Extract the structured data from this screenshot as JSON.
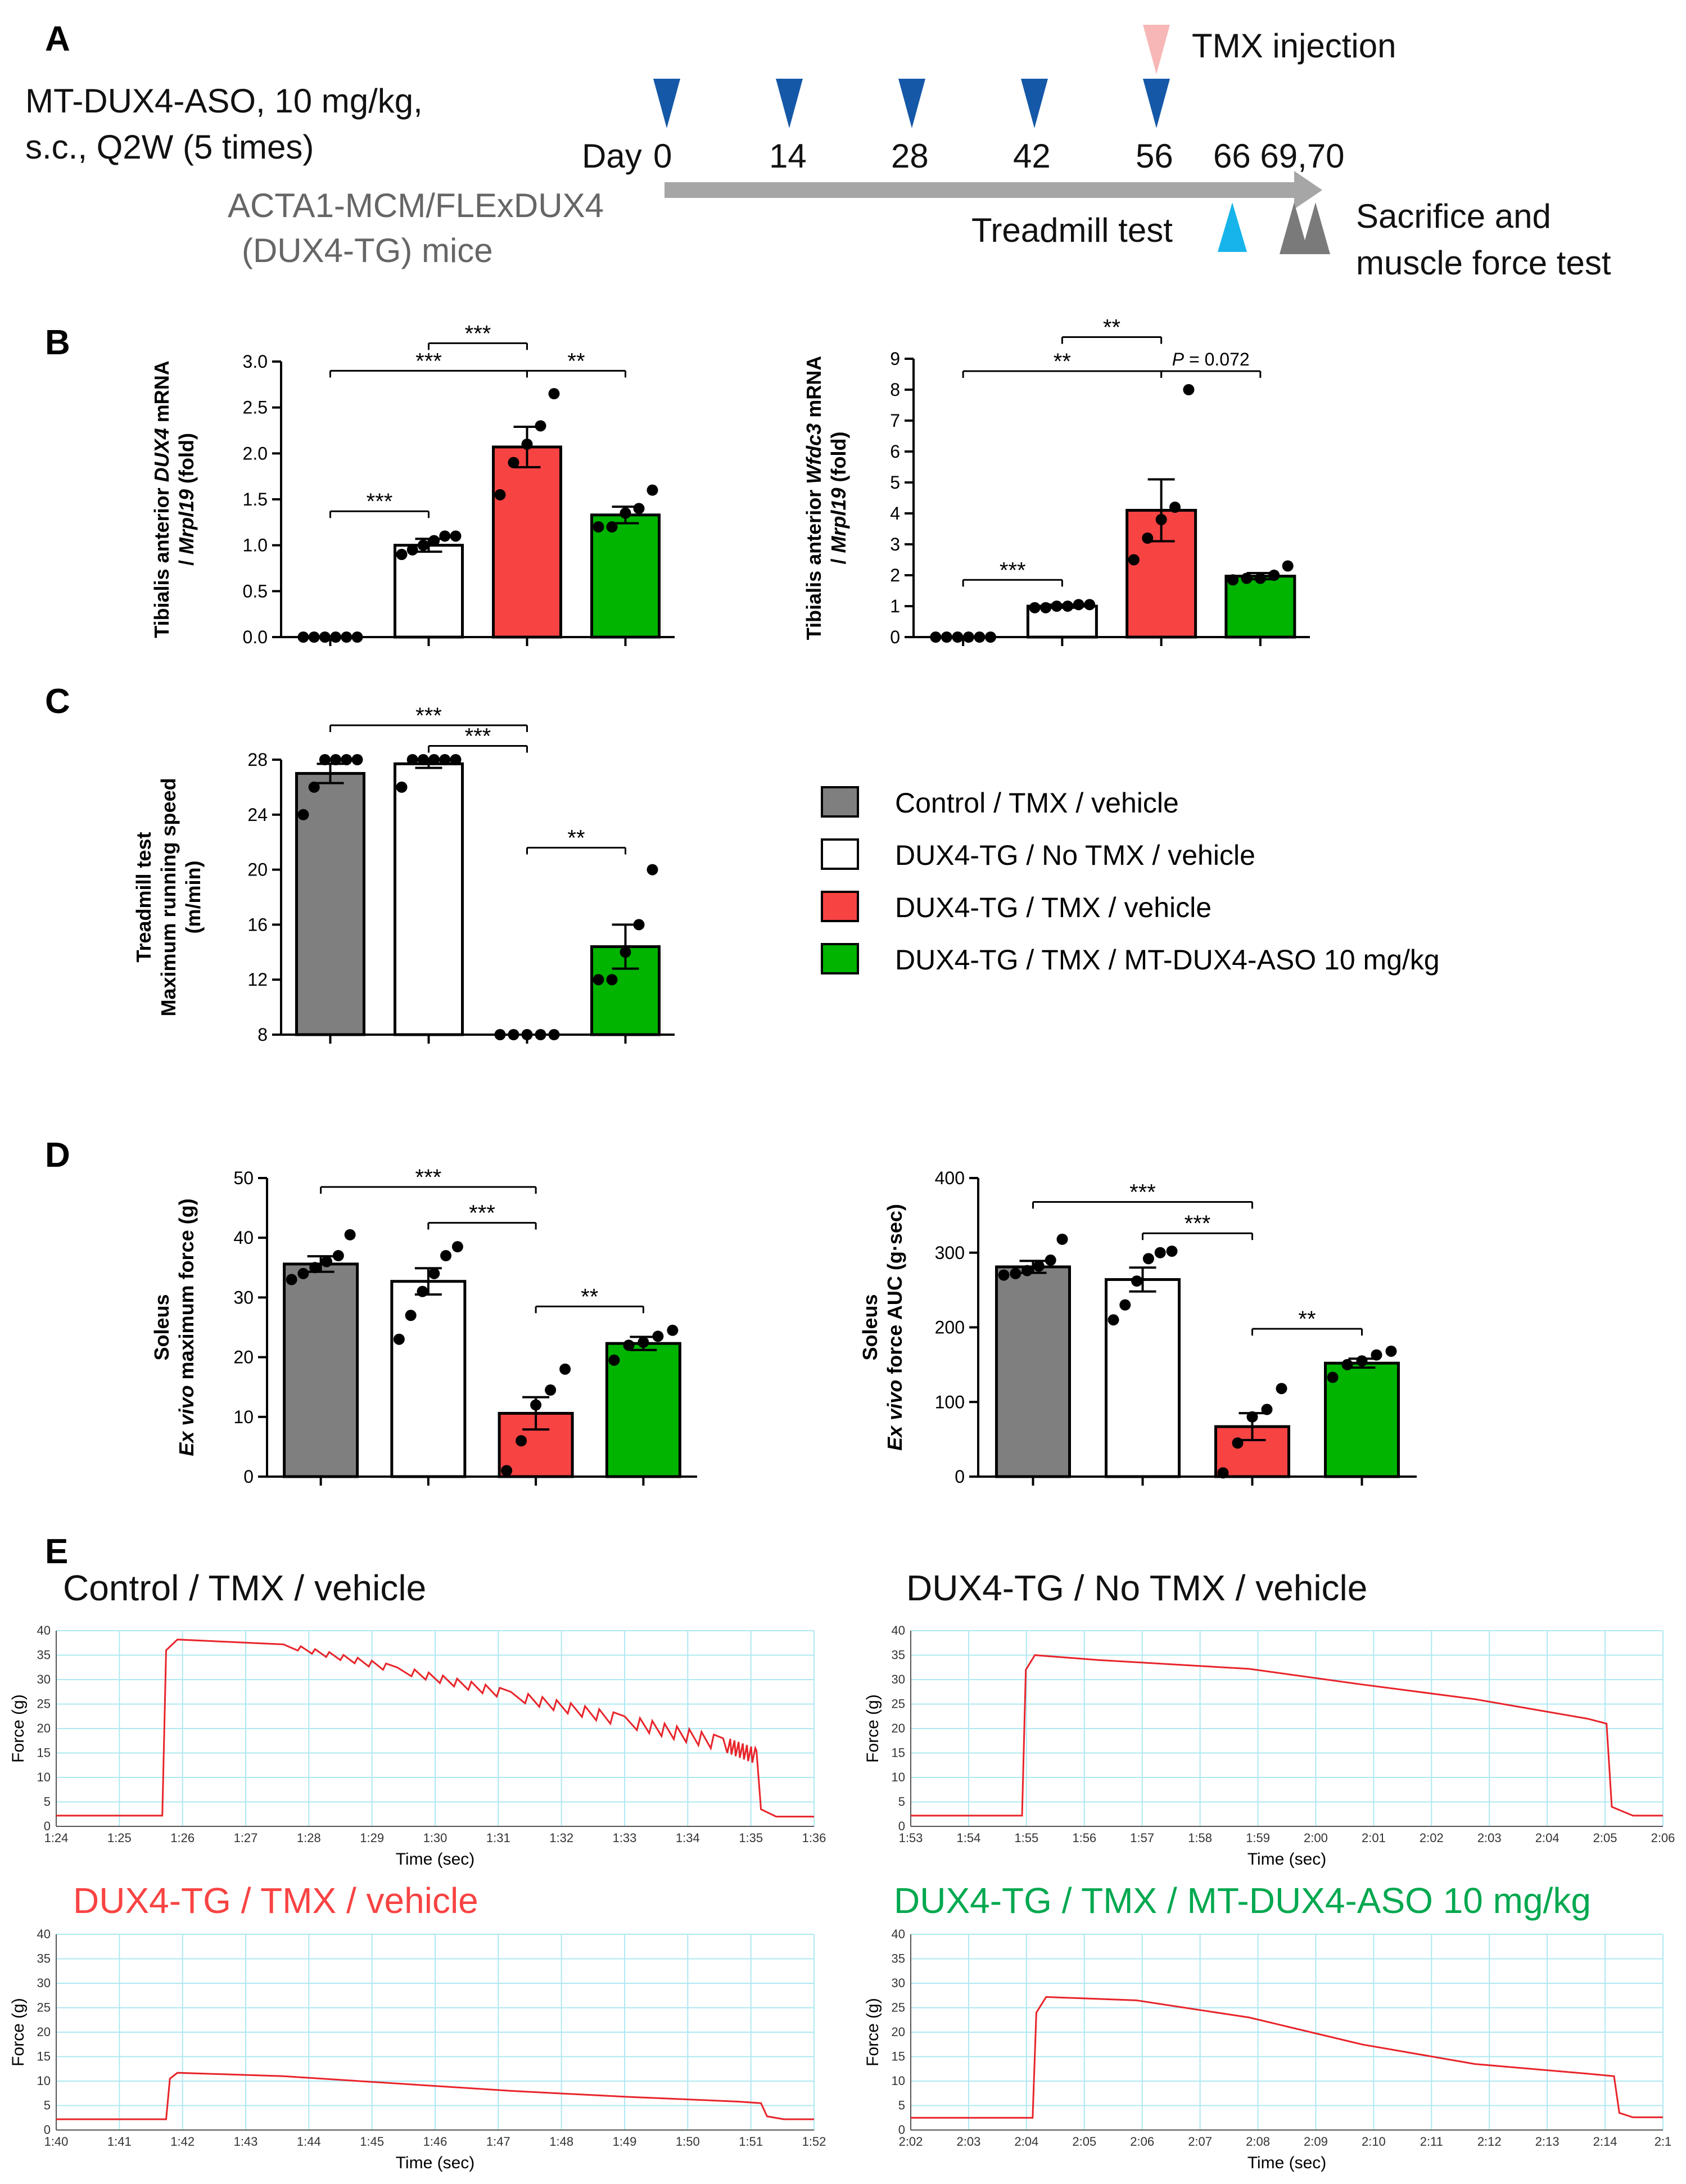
{
  "colors": {
    "control": "#7f7f7f",
    "notmx": "#ffffff",
    "tmx": "#f84343",
    "aso": "#00b400",
    "arrow_blue": "#1558a8",
    "arrow_pink": "#f7b7b7",
    "arrow_cyan": "#16b4ea",
    "arrow_gray": "#7a7a7a",
    "timeline": "#a6a6a6",
    "trace_red": "#e8242a",
    "trace_grid": "#aee8f2",
    "trace_green_title": "#00a84f"
  },
  "panelA": {
    "letter": "A",
    "treatment_line1": "MT-DUX4-ASO, 10 mg/kg,",
    "treatment_line2": "s.c., Q2W (5 times)",
    "mouse_line1": "ACTA1-MCM/FLExDUX4",
    "mouse_line2": "(DUX4-TG) mice",
    "day_label": "Day",
    "days": [
      "0",
      "14",
      "28",
      "42",
      "56"
    ],
    "days_after": "66 69,70",
    "tmx_label": "TMX injection",
    "treadmill_label": "Treadmill test",
    "sacrifice_line1": "Sacrifice and",
    "sacrifice_line2": "muscle force test"
  },
  "legend": [
    {
      "label": "Control / TMX / vehicle",
      "color_key": "control"
    },
    {
      "label": "DUX4-TG / No TMX / vehicle",
      "color_key": "notmx"
    },
    {
      "label": "DUX4-TG / TMX / vehicle",
      "color_key": "tmx"
    },
    {
      "label": "DUX4-TG / TMX / MT-DUX4-ASO 10 mg/kg",
      "color_key": "aso"
    }
  ],
  "chart_data": [
    {
      "id": "B1",
      "panel": "B",
      "type": "bar",
      "categories": [
        "Control / TMX / vehicle",
        "DUX4-TG / No TMX / vehicle",
        "DUX4-TG / TMX / vehicle",
        "DUX4-TG / TMX / MT-DUX4-ASO 10 mg/kg"
      ],
      "values": [
        0.0,
        1.0,
        2.07,
        1.33
      ],
      "sem": [
        0.0,
        0.07,
        0.22,
        0.09
      ],
      "points": [
        [
          0.0,
          0.0,
          0.0,
          0.0,
          0.0,
          0.0
        ],
        [
          0.9,
          0.95,
          1.0,
          1.05,
          1.1,
          1.1
        ],
        [
          1.55,
          1.9,
          2.1,
          2.3,
          2.65
        ],
        [
          1.2,
          1.2,
          1.35,
          1.4,
          1.6
        ]
      ],
      "ylabel_line1": "Tibialis anterior DUX4 mRNA",
      "ylabel_line2": "/ Mrpl19 (fold)",
      "ylim": [
        0,
        3.0
      ],
      "yticks": [
        "0.0",
        "0.5",
        "1.0",
        "1.5",
        "2.0",
        "2.5",
        "3.0"
      ],
      "comparisons": [
        {
          "from": 0,
          "to": 1,
          "label": "***",
          "level": 1.37
        },
        {
          "from": 0,
          "to": 2,
          "label": "***",
          "level": 2.9
        },
        {
          "from": 1,
          "to": 2,
          "label": "***",
          "level": 3.2
        },
        {
          "from": 2,
          "to": 3,
          "label": "**",
          "level": 2.9
        }
      ]
    },
    {
      "id": "B2",
      "panel": "B",
      "type": "bar",
      "categories": [
        "Control / TMX / vehicle",
        "DUX4-TG / No TMX / vehicle",
        "DUX4-TG / TMX / vehicle",
        "DUX4-TG / TMX / MT-DUX4-ASO 10 mg/kg"
      ],
      "values": [
        0.0,
        1.0,
        4.1,
        1.97
      ],
      "sem": [
        0.0,
        0.05,
        1.0,
        0.1
      ],
      "points": [
        [
          0.0,
          0.0,
          0.0,
          0.0,
          0.0,
          0.0
        ],
        [
          0.95,
          0.95,
          1.0,
          1.0,
          1.05,
          1.05
        ],
        [
          2.5,
          3.2,
          3.8,
          4.2,
          8.0
        ],
        [
          1.85,
          1.9,
          1.9,
          2.0,
          2.3
        ]
      ],
      "ylabel_line1": "Tibialis anterior Wfdc3 mRNA",
      "ylabel_line2": "/ Mrpl19 (fold)",
      "ylim": [
        0,
        9
      ],
      "yticks": [
        "0",
        "1",
        "2",
        "3",
        "4",
        "5",
        "6",
        "7",
        "8",
        "9"
      ],
      "comparisons": [
        {
          "from": 0,
          "to": 1,
          "label": "***",
          "level": 1.85
        },
        {
          "from": 0,
          "to": 2,
          "label": "**",
          "level": 8.6
        },
        {
          "from": 1,
          "to": 2,
          "label": "**",
          "level": 9.7
        },
        {
          "from": 2,
          "to": 3,
          "label": "P = 0.072",
          "level": 8.6
        }
      ]
    },
    {
      "id": "C",
      "panel": "C",
      "type": "bar",
      "categories": [
        "Control / TMX / vehicle",
        "DUX4-TG / No TMX / vehicle",
        "DUX4-TG / TMX / vehicle",
        "DUX4-TG / TMX / MT-DUX4-ASO 10 mg/kg"
      ],
      "values": [
        27.0,
        27.7,
        8.0,
        14.4
      ],
      "sem": [
        0.7,
        0.3,
        0.0,
        1.6
      ],
      "points": [
        [
          24.0,
          26.0,
          28.0,
          28.0,
          28.0,
          28.0
        ],
        [
          26.0,
          28.0,
          28.0,
          28.0,
          28.0,
          28.0
        ],
        [
          8.0,
          8.0,
          8.0,
          8.0,
          8.0
        ],
        [
          12.0,
          12.0,
          14.0,
          16.0,
          20.0
        ]
      ],
      "ylabel_line1": "Treadmill test",
      "ylabel_line2": "Maximum running speed",
      "ylabel_line3": "(m/min)",
      "ylim": [
        8,
        28
      ],
      "yticks": [
        "8",
        "12",
        "16",
        "20",
        "24",
        "28"
      ],
      "comparisons": [
        {
          "from": 0,
          "to": 2,
          "label": "***",
          "level": 30.5
        },
        {
          "from": 1,
          "to": 2,
          "label": "***",
          "level": 29.0
        },
        {
          "from": 2,
          "to": 3,
          "label": "**",
          "level": 21.6
        }
      ]
    },
    {
      "id": "D1",
      "panel": "D",
      "type": "bar",
      "categories": [
        "Control / TMX / vehicle",
        "DUX4-TG / No TMX / vehicle",
        "DUX4-TG / TMX / vehicle",
        "DUX4-TG / TMX / MT-DUX4-ASO 10 mg/kg"
      ],
      "values": [
        35.6,
        32.7,
        10.6,
        22.3
      ],
      "sem": [
        1.3,
        2.2,
        2.7,
        1.1
      ],
      "points": [
        [
          33.0,
          34.0,
          35.0,
          36.0,
          37.0,
          40.5
        ],
        [
          23.0,
          27.0,
          31.0,
          34.0,
          37.0,
          38.5
        ],
        [
          1.0,
          6.0,
          12.0,
          14.5,
          18.0
        ],
        [
          19.5,
          22.0,
          22.5,
          23.5,
          24.5
        ]
      ],
      "ylabel_line1": "Soleus",
      "ylabel_line2": "Ex vivo maximum force (g)",
      "ylim": [
        0,
        50
      ],
      "yticks": [
        "0",
        "10",
        "20",
        "30",
        "40",
        "50"
      ],
      "comparisons": [
        {
          "from": 0,
          "to": 2,
          "label": "***",
          "level": 48.5
        },
        {
          "from": 1,
          "to": 2,
          "label": "***",
          "level": 42.5
        },
        {
          "from": 2,
          "to": 3,
          "label": "**",
          "level": 28.5
        }
      ]
    },
    {
      "id": "D2",
      "panel": "D",
      "type": "bar",
      "categories": [
        "Control / TMX / vehicle",
        "DUX4-TG / No TMX / vehicle",
        "DUX4-TG / TMX / vehicle",
        "DUX4-TG / TMX / MT-DUX4-ASO 10 mg/kg"
      ],
      "values": [
        281,
        264,
        67,
        152
      ],
      "sem": [
        8,
        16,
        18,
        6
      ],
      "points": [
        [
          270,
          272,
          276,
          282,
          290,
          318
        ],
        [
          210,
          230,
          262,
          292,
          300,
          302
        ],
        [
          5,
          45,
          80,
          90,
          118
        ],
        [
          133,
          150,
          155,
          163,
          168
        ]
      ],
      "ylabel_line1": "Soleus",
      "ylabel_line2": "Ex vivo force AUC (g·sec)",
      "ylim": [
        0,
        400
      ],
      "yticks": [
        "0",
        "100",
        "200",
        "300",
        "400"
      ],
      "comparisons": [
        {
          "from": 0,
          "to": 2,
          "label": "***",
          "level": 368
        },
        {
          "from": 1,
          "to": 2,
          "label": "***",
          "level": 326
        },
        {
          "from": 2,
          "to": 3,
          "label": "**",
          "level": 198
        }
      ]
    },
    {
      "id": "E1",
      "panel": "E",
      "type": "line",
      "title": "Control / TMX / vehicle",
      "xlabel": "Time (sec)",
      "ylabel": "Force (g)",
      "ylim": [
        0,
        40
      ],
      "yticks": [
        "0",
        "5",
        "10",
        "15",
        "20",
        "25",
        "30",
        "35",
        "40"
      ],
      "xticks": [
        "1:24",
        "1:25",
        "1:26",
        "1:27",
        "1:28",
        "1:29",
        "1:30",
        "1:31",
        "1:32",
        "1:33",
        "1:34",
        "1:35",
        "1:36"
      ],
      "x": [
        0,
        0.14,
        0.145,
        0.16,
        0.3,
        0.45,
        0.6,
        0.75,
        0.88,
        0.924,
        0.93,
        0.95,
        1.0
      ],
      "y": [
        2.2,
        2.2,
        36.0,
        38.2,
        37.2,
        32.5,
        27.5,
        22.5,
        18.0,
        15.5,
        3.5,
        2.0,
        2.0
      ],
      "sawtooth": true
    },
    {
      "id": "E2",
      "panel": "E",
      "type": "line",
      "title": "DUX4-TG / No TMX / vehicle",
      "xlabel": "Time (sec)",
      "ylabel": "Force (g)",
      "ylim": [
        0,
        40
      ],
      "yticks": [
        "0",
        "5",
        "10",
        "15",
        "20",
        "25",
        "30",
        "35",
        "40"
      ],
      "xticks": [
        "1:53",
        "1:54",
        "1:55",
        "1:56",
        "1:57",
        "1:58",
        "1:59",
        "2:00",
        "2:01",
        "2:02",
        "2:03",
        "2:04",
        "2:05",
        "2:06"
      ],
      "x": [
        0,
        0.148,
        0.153,
        0.165,
        0.25,
        0.45,
        0.6,
        0.75,
        0.9,
        0.925,
        0.932,
        0.96,
        1.0
      ],
      "y": [
        2.2,
        2.2,
        32.0,
        35.0,
        34.0,
        32.2,
        29.0,
        26.0,
        22.0,
        21.0,
        4.0,
        2.2,
        2.2
      ],
      "sawtooth": false
    },
    {
      "id": "E3",
      "panel": "E",
      "type": "line",
      "title": "DUX4-TG / TMX / vehicle",
      "xlabel": "Time (sec)",
      "ylabel": "Force (g)",
      "ylim": [
        0,
        40
      ],
      "yticks": [
        "0",
        "5",
        "10",
        "15",
        "20",
        "25",
        "30",
        "35",
        "40"
      ],
      "xticks": [
        "1:40",
        "1:41",
        "1:42",
        "1:43",
        "1:44",
        "1:45",
        "1:46",
        "1:47",
        "1:48",
        "1:49",
        "1:50",
        "1:51",
        "1:52"
      ],
      "x": [
        0,
        0.145,
        0.15,
        0.16,
        0.3,
        0.45,
        0.6,
        0.75,
        0.9,
        0.93,
        0.938,
        0.96,
        1.0
      ],
      "y": [
        2.2,
        2.2,
        10.5,
        11.7,
        11.0,
        9.5,
        8.0,
        6.8,
        5.8,
        5.5,
        2.8,
        2.2,
        2.2
      ],
      "sawtooth": false
    },
    {
      "id": "E4",
      "panel": "E",
      "type": "line",
      "title": "DUX4-TG / TMX / MT-DUX4-ASO 10 mg/kg",
      "xlabel": "Time (sec)",
      "ylabel": "Force (g)",
      "ylim": [
        0,
        40
      ],
      "yticks": [
        "0",
        "5",
        "10",
        "15",
        "20",
        "25",
        "30",
        "35",
        "40"
      ],
      "xticks": [
        "2:02",
        "2:03",
        "2:04",
        "2:05",
        "2:06",
        "2:07",
        "2:08",
        "2:09",
        "2:10",
        "2:11",
        "2:12",
        "2:13",
        "2:14",
        "2:1"
      ],
      "x": [
        0,
        0.162,
        0.167,
        0.18,
        0.3,
        0.45,
        0.6,
        0.75,
        0.9,
        0.935,
        0.942,
        0.96,
        1.0
      ],
      "y": [
        2.5,
        2.5,
        24.0,
        27.2,
        26.5,
        23.0,
        17.5,
        13.5,
        11.5,
        11.0,
        3.5,
        2.6,
        2.6
      ],
      "sawtooth": false
    }
  ]
}
